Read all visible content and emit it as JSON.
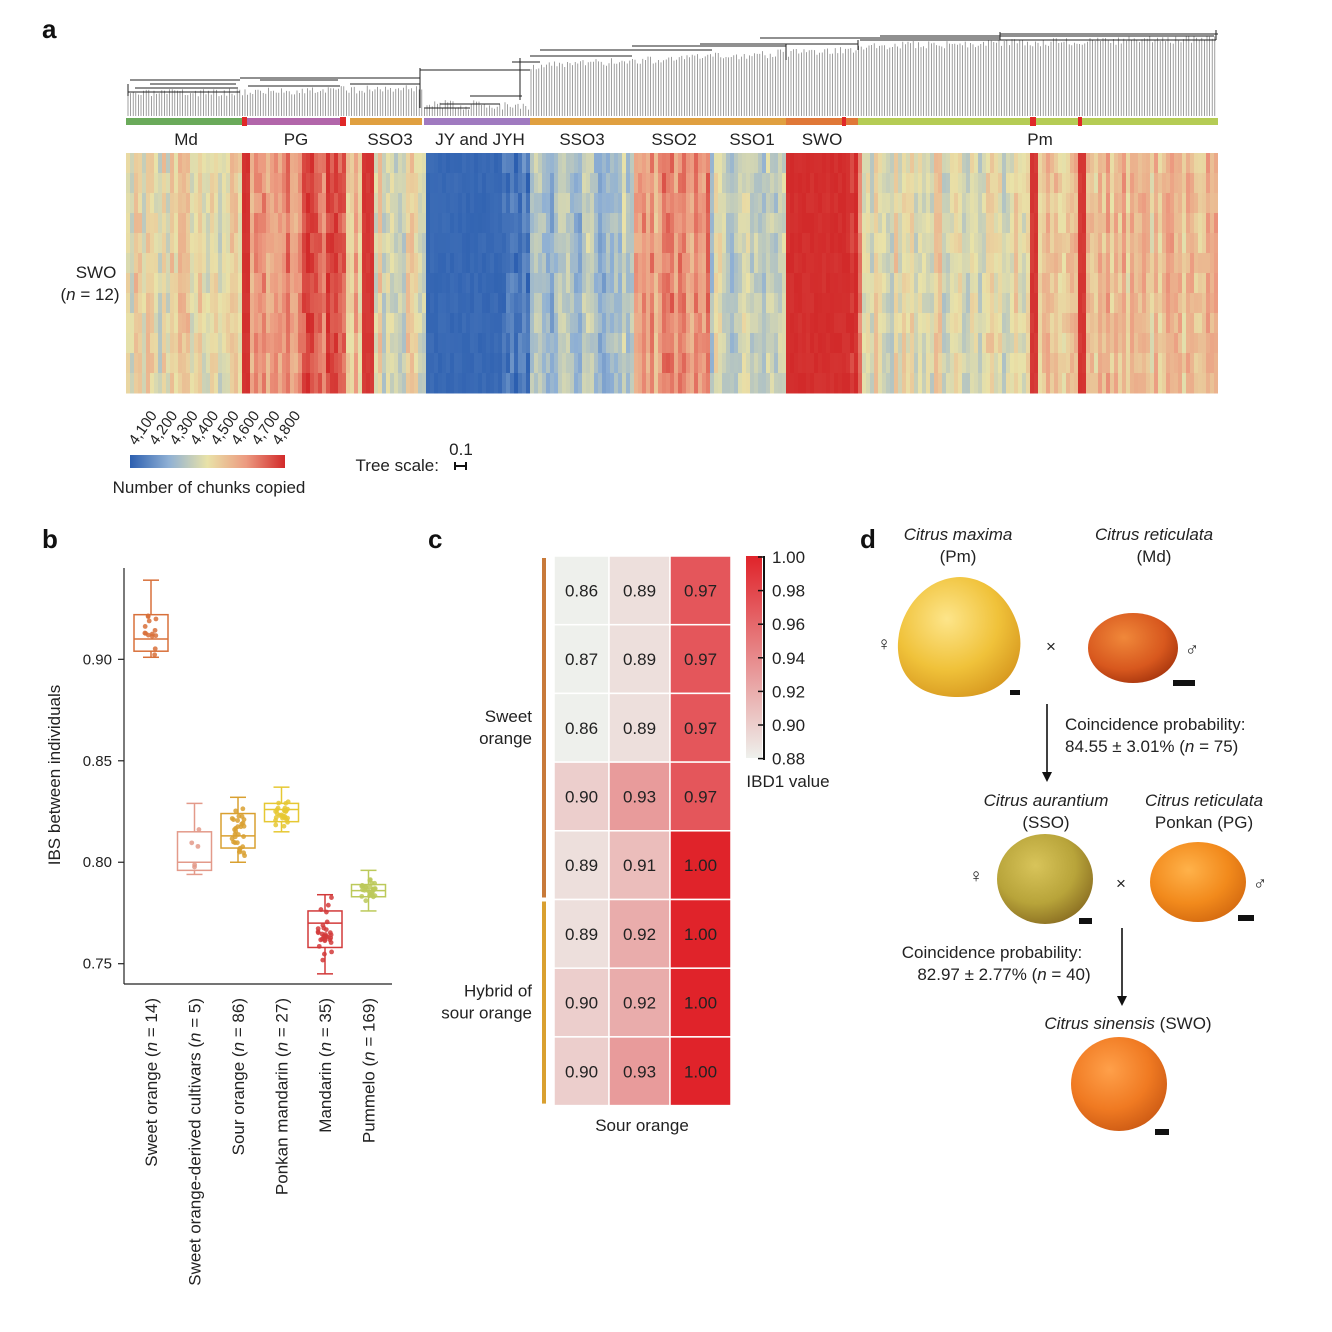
{
  "panels": {
    "a": "a",
    "b": "b",
    "c": "c",
    "d": "d"
  },
  "chart_data": [
    {
      "panel": "a",
      "type": "heatmap",
      "groups": [
        {
          "label": "Md",
          "color": "#6aaa5a"
        },
        {
          "label": "PG",
          "color": "#b266aa"
        },
        {
          "label": "SSO3",
          "color": "#e0a040"
        },
        {
          "label": "JY and JYH",
          "color": "#a07ac0"
        },
        {
          "label": "SSO3",
          "color": "#e0a040"
        },
        {
          "label": "SSO2",
          "color": "#e0a040"
        },
        {
          "label": "SSO1",
          "color": "#e0a040"
        },
        {
          "label": "SWO",
          "color": "#e07838"
        },
        {
          "label": "Pm",
          "color": "#b5cc55"
        }
      ],
      "row_label": "SWO",
      "row_n_prefix": "(",
      "row_n_italic": "n",
      "row_n_suffix": " = 12)",
      "rows": 12,
      "colorbar_ticks": [
        "4,100",
        "4,200",
        "4,300",
        "4,400",
        "4,500",
        "4,600",
        "4,700",
        "4,800"
      ],
      "colorbar_colors": [
        "#2c5fb0",
        "#8fb0d4",
        "#e9e2a8",
        "#ec9a80",
        "#d22a2a"
      ],
      "colorbar_label": "Number of chunks copied",
      "tree_scale_label": "Tree scale:",
      "tree_scale_value": "0.1"
    },
    {
      "panel": "b",
      "type": "box",
      "ylabel": "IBS between individuals",
      "ylim": [
        0.74,
        0.945
      ],
      "yticks": [
        "0.75",
        "0.80",
        "0.85",
        "0.90"
      ],
      "categories": [
        {
          "name": "Sweet orange",
          "n": "(n = 14)",
          "color": "#d8703a",
          "min": 0.901,
          "q1": 0.904,
          "median": 0.91,
          "q3": 0.922,
          "max": 0.939
        },
        {
          "name": "Sweet orange-derived cultivars",
          "n": "(n = 5)",
          "color": "#e39a8a",
          "min": 0.794,
          "q1": 0.796,
          "median": 0.8,
          "q3": 0.815,
          "max": 0.829
        },
        {
          "name": "Sour orange",
          "n": "(n = 86)",
          "color": "#d9a030",
          "min": 0.8,
          "q1": 0.807,
          "median": 0.813,
          "q3": 0.824,
          "max": 0.832
        },
        {
          "name": "Ponkan mandarin",
          "n": "(n = 27)",
          "color": "#e6c833",
          "min": 0.815,
          "q1": 0.82,
          "median": 0.826,
          "q3": 0.829,
          "max": 0.837
        },
        {
          "name": "Mandarin",
          "n": "(n = 35)",
          "color": "#d23a3a",
          "min": 0.745,
          "q1": 0.758,
          "median": 0.77,
          "q3": 0.776,
          "max": 0.784
        },
        {
          "name": "Pummelo",
          "n": "(n = 169)",
          "color": "#bcc95a",
          "min": 0.776,
          "q1": 0.783,
          "median": 0.786,
          "q3": 0.789,
          "max": 0.796
        }
      ]
    },
    {
      "panel": "c",
      "type": "heatmap",
      "values": [
        [
          0.86,
          0.89,
          0.97
        ],
        [
          0.87,
          0.89,
          0.97
        ],
        [
          0.86,
          0.89,
          0.97
        ],
        [
          0.9,
          0.93,
          0.97
        ],
        [
          0.89,
          0.91,
          1.0
        ],
        [
          0.89,
          0.92,
          1.0
        ],
        [
          0.9,
          0.92,
          1.0
        ],
        [
          0.9,
          0.93,
          1.0
        ]
      ],
      "labels": [
        [
          "0.86",
          "0.89",
          "0.97"
        ],
        [
          "0.87",
          "0.89",
          "0.97"
        ],
        [
          "0.86",
          "0.89",
          "0.97"
        ],
        [
          "0.90",
          "0.93",
          "0.97"
        ],
        [
          "0.89",
          "0.91",
          "1.00"
        ],
        [
          "0.89",
          "0.92",
          "1.00"
        ],
        [
          "0.90",
          "0.92",
          "1.00"
        ],
        [
          "0.90",
          "0.93",
          "1.00"
        ]
      ],
      "row_groups": [
        {
          "label_line1": "Sweet",
          "label_line2": "orange",
          "rows": [
            0,
            4
          ],
          "color": "#c87a3a"
        },
        {
          "label_line1": "Hybrid of",
          "label_line2": "sour orange",
          "rows": [
            5,
            7
          ],
          "color": "#d9a030"
        }
      ],
      "xlabel": "Sour orange",
      "color_range": [
        0.88,
        1.0
      ],
      "colorbar_ticks": [
        "1.00",
        "0.98",
        "0.96",
        "0.94",
        "0.92",
        "0.90",
        "0.88"
      ],
      "colorbar_label": "IBD1 value"
    }
  ],
  "diagram_d": {
    "parent1_species": "Citrus maxima",
    "parent1_code": "(Pm)",
    "parent2_species": "Citrus reticulata",
    "parent2_code": "(Md)",
    "female": "♀",
    "male": "♂",
    "cross": "×",
    "prob1_title": "Coincidence probability:",
    "prob1_value": "84.55 ± 3.01% (",
    "prob1_n": "n",
    "prob1_tail": " = 75)",
    "child1_species": "Citrus aurantium",
    "child1_code": "(SSO)",
    "child2_species": "Citrus reticulata",
    "child2_code": "Ponkan (PG)",
    "prob2_title": "Coincidence probability:",
    "prob2_value": "82.97 ± 2.77% (",
    "prob2_n": "n",
    "prob2_tail": " = 40)",
    "final_species": "Citrus sinensis",
    "final_code": " (SWO)",
    "fruit_colors": {
      "pummelo": "#f0c23a",
      "mandarin": "#d8581e",
      "sour_orange": "#b8a43a",
      "ponkan": "#f28a1c",
      "sweet_orange": "#f07a22"
    }
  }
}
